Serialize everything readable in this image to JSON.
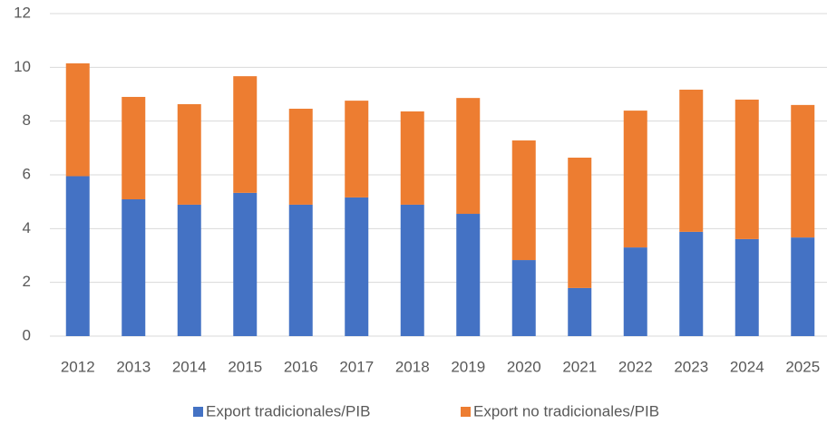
{
  "chart_data": {
    "type": "stacked_bar",
    "categories": [
      "2012",
      "2013",
      "2014",
      "2015",
      "2016",
      "2017",
      "2018",
      "2019",
      "2020",
      "2021",
      "2022",
      "2023",
      "2024",
      "2025"
    ],
    "series": [
      {
        "name": "Export tradicionales/PIB",
        "color": "#4472c4",
        "values": [
          5.95,
          5.09,
          4.89,
          5.33,
          4.89,
          5.16,
          4.89,
          4.55,
          2.83,
          1.79,
          3.3,
          3.88,
          3.61,
          3.67
        ]
      },
      {
        "name": "Export no tradicionales/PIB",
        "color": "#ed7d31",
        "values": [
          4.2,
          3.81,
          3.74,
          4.34,
          3.57,
          3.6,
          3.47,
          4.31,
          4.45,
          4.85,
          5.09,
          5.29,
          5.19,
          4.93
        ]
      }
    ],
    "ylim": [
      0,
      12
    ],
    "yticks": [
      0,
      2,
      4,
      6,
      8,
      10,
      12
    ],
    "grid": true,
    "legend": "bottom"
  }
}
